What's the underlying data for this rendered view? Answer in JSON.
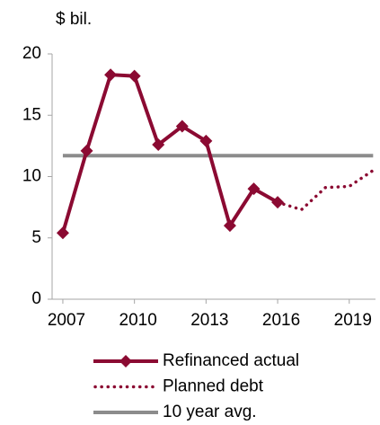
{
  "chart_data": {
    "type": "line",
    "y_label": "$ bil.",
    "x": [
      2007,
      2008,
      2009,
      2010,
      2011,
      2012,
      2013,
      2014,
      2015,
      2016,
      2017,
      2018,
      2019,
      2020
    ],
    "xlim": [
      2006.55,
      2020.1
    ],
    "xticks": [
      2007,
      2010,
      2013,
      2016,
      2019
    ],
    "ylim": [
      0,
      20
    ],
    "yticks": [
      0,
      5,
      10,
      15,
      20
    ],
    "series": [
      {
        "name": "Refinanced actual",
        "color": "#8b0a32",
        "style": "line-marker",
        "values": [
          5.4,
          12.1,
          18.3,
          18.2,
          12.6,
          14.1,
          12.9,
          6.0,
          9.0,
          7.9,
          null,
          null,
          null,
          null
        ]
      },
      {
        "name": "Planned debt",
        "color": "#8b0a32",
        "style": "dotted",
        "values": [
          null,
          null,
          null,
          null,
          null,
          null,
          null,
          null,
          null,
          7.9,
          7.3,
          9.1,
          9.2,
          10.5
        ]
      },
      {
        "name": "10 year avg.",
        "color": "#8c8c8c",
        "style": "line",
        "values": [
          11.7,
          11.7,
          11.7,
          11.7,
          11.7,
          11.7,
          11.7,
          11.7,
          11.7,
          11.7,
          11.7,
          11.7,
          11.7,
          11.7
        ]
      }
    ]
  }
}
